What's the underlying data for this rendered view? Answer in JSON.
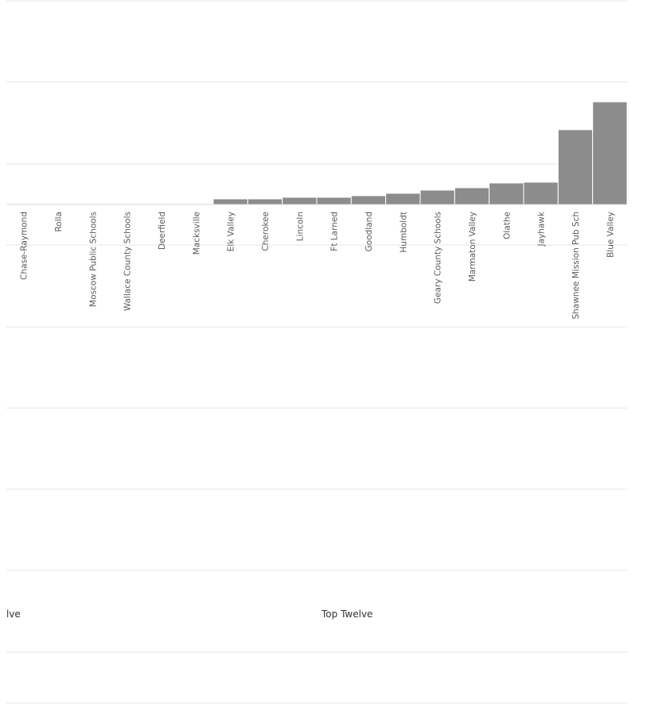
{
  "chart_data": {
    "type": "bar",
    "categories": [
      "Chase-Raymond",
      "Rolla",
      "Moscow Public Schools",
      "Wallace County Schools",
      "Deerfield",
      "Macksville",
      "Elk Valley",
      "Cherokee",
      "Lincoln",
      "Ft Larned",
      "Goodland",
      "Humboldt",
      "Geary County Schools",
      "Marmaton Valley",
      "Olathe",
      "Jayhawk",
      "Shawnee Mission Pub Sch",
      "Blue Valley"
    ],
    "values": [
      0,
      0,
      0,
      0,
      0,
      0,
      0.07,
      0.07,
      0.09,
      0.09,
      0.11,
      0.14,
      0.18,
      0.21,
      0.27,
      0.28,
      0.94,
      1.29
    ],
    "ylim": [
      0,
      2.5
    ],
    "grid": true,
    "bar_color": "#8c8c8c",
    "captions": [
      "lve",
      "Top Twelve"
    ]
  }
}
